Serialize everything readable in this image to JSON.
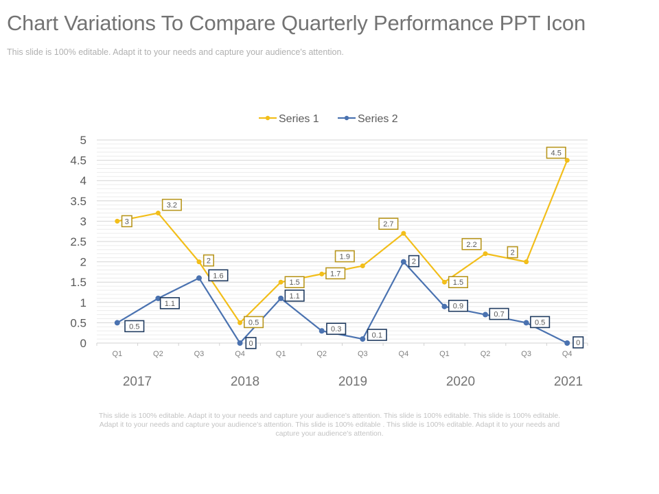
{
  "header": {
    "title": "Chart Variations To Compare Quarterly Performance PPT Icon",
    "subtitle": "This slide is 100% editable.  Adapt it to your needs and capture your audience's attention."
  },
  "footer": {
    "text": "This slide is 100% editable. Adapt it to your needs and capture your audience's attention. This slide is 100% editable. This slide is 100% editable. Adapt it to your needs and capture your audience's attention. This slide is 100% editable . This slide is 100% editable. Adapt it to your needs and capture your audience's attention."
  },
  "chart_data": {
    "type": "line",
    "title": "",
    "xlabel": "",
    "ylabel": "",
    "categories": [
      "Q1",
      "Q2",
      "Q3",
      "Q4",
      "Q1",
      "Q2",
      "Q3",
      "Q4",
      "Q1",
      "Q2",
      "Q3",
      "Q4"
    ],
    "year_labels": [
      "2017",
      "2018",
      "2019",
      "2020",
      "2021"
    ],
    "yticks": [
      "0",
      "0.5",
      "1",
      "1.5",
      "2",
      "2.5",
      "3",
      "3.5",
      "4",
      "4.5",
      "5"
    ],
    "ylim": [
      0,
      5
    ],
    "grid": true,
    "legend": "top-center",
    "series": [
      {
        "name": "Series 1",
        "color": "#F2BE1A",
        "label_border": "#B8961E",
        "values": [
          3,
          3.2,
          2,
          0.5,
          1.5,
          1.7,
          1.9,
          2.7,
          1.5,
          2.2,
          2,
          4.5
        ]
      },
      {
        "name": "Series 2",
        "color": "#4A72B0",
        "label_border": "#1F3A5F",
        "values": [
          0.5,
          1.1,
          1.6,
          0,
          1.1,
          0.3,
          0.1,
          2,
          0.9,
          0.7,
          0.5,
          0
        ]
      }
    ]
  }
}
